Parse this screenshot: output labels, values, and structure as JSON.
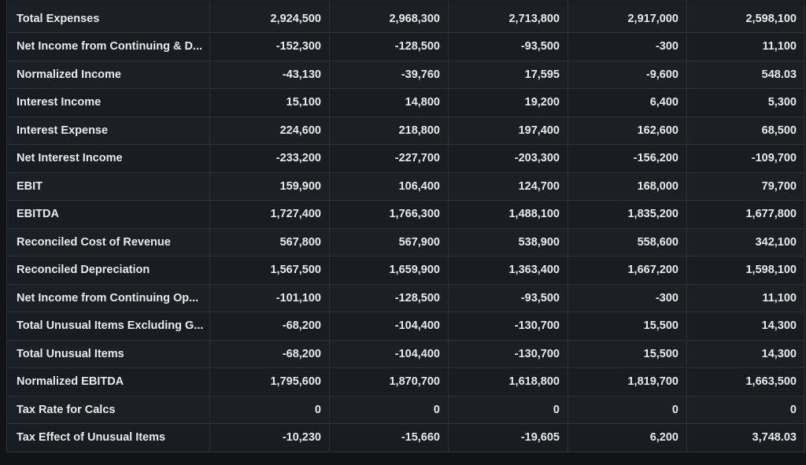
{
  "table": {
    "rows": [
      {
        "label": "Total Expenses",
        "values": [
          "2,924,500",
          "2,968,300",
          "2,713,800",
          "2,917,000",
          "2,598,100"
        ]
      },
      {
        "label": "Net Income from Continuing & D...",
        "values": [
          "-152,300",
          "-128,500",
          "-93,500",
          "-300",
          "11,100"
        ]
      },
      {
        "label": "Normalized Income",
        "values": [
          "-43,130",
          "-39,760",
          "17,595",
          "-9,600",
          "548.03"
        ]
      },
      {
        "label": "Interest Income",
        "values": [
          "15,100",
          "14,800",
          "19,200",
          "6,400",
          "5,300"
        ]
      },
      {
        "label": "Interest Expense",
        "values": [
          "224,600",
          "218,800",
          "197,400",
          "162,600",
          "68,500"
        ]
      },
      {
        "label": "Net Interest Income",
        "values": [
          "-233,200",
          "-227,700",
          "-203,300",
          "-156,200",
          "-109,700"
        ]
      },
      {
        "label": "EBIT",
        "values": [
          "159,900",
          "106,400",
          "124,700",
          "168,000",
          "79,700"
        ]
      },
      {
        "label": "EBITDA",
        "values": [
          "1,727,400",
          "1,766,300",
          "1,488,100",
          "1,835,200",
          "1,677,800"
        ]
      },
      {
        "label": "Reconciled Cost of Revenue",
        "values": [
          "567,800",
          "567,900",
          "538,900",
          "558,600",
          "342,100"
        ]
      },
      {
        "label": "Reconciled Depreciation",
        "values": [
          "1,567,500",
          "1,659,900",
          "1,363,400",
          "1,667,200",
          "1,598,100"
        ]
      },
      {
        "label": "Net Income from Continuing Op...",
        "values": [
          "-101,100",
          "-128,500",
          "-93,500",
          "-300",
          "11,100"
        ]
      },
      {
        "label": "Total Unusual Items Excluding G...",
        "values": [
          "-68,200",
          "-104,400",
          "-130,700",
          "15,500",
          "14,300"
        ]
      },
      {
        "label": "Total Unusual Items",
        "values": [
          "-68,200",
          "-104,400",
          "-130,700",
          "15,500",
          "14,300"
        ]
      },
      {
        "label": "Normalized EBITDA",
        "values": [
          "1,795,600",
          "1,870,700",
          "1,618,800",
          "1,819,700",
          "1,663,500"
        ]
      },
      {
        "label": "Tax Rate for Calcs",
        "values": [
          "0",
          "0",
          "0",
          "0",
          "0"
        ]
      },
      {
        "label": "Tax Effect of Unusual Items",
        "values": [
          "-10,230",
          "-15,660",
          "-19,605",
          "6,200",
          "3,748.03"
        ]
      }
    ]
  }
}
